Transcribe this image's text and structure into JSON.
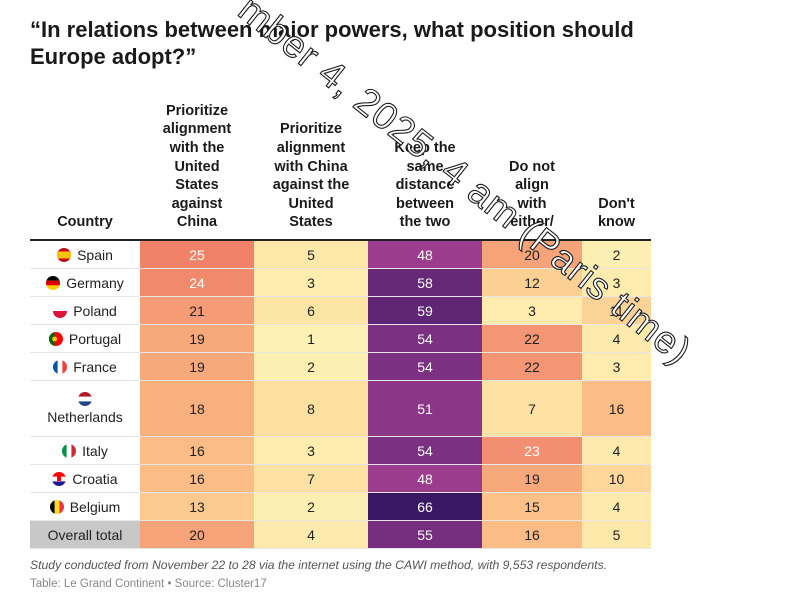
{
  "title": "“In relations between major powers, what position should Europe adopt?”",
  "columns": {
    "country": "Country",
    "c1": [
      "Prioritize",
      "alignment",
      "with the",
      "United",
      "States",
      "against",
      "China"
    ],
    "c2": [
      "Prioritize",
      "alignment",
      "with China",
      "against the",
      "United",
      "States"
    ],
    "c3": [
      "Keep the",
      "same",
      "distance",
      "between",
      "the two"
    ],
    "c4": [
      "Do not",
      "align",
      "with",
      "either/"
    ],
    "c5": [
      "Don't",
      "know"
    ]
  },
  "rows": [
    {
      "country": "Spain",
      "v": [
        "25",
        "5",
        "48",
        "20",
        "2"
      ]
    },
    {
      "country": "Germany",
      "v": [
        "24",
        "3",
        "58",
        "12",
        "3"
      ]
    },
    {
      "country": "Poland",
      "v": [
        "21",
        "6",
        "59",
        "3",
        "11"
      ]
    },
    {
      "country": "Portugal",
      "v": [
        "19",
        "1",
        "54",
        "22",
        "4"
      ]
    },
    {
      "country": "France",
      "v": [
        "19",
        "2",
        "54",
        "22",
        "3"
      ]
    },
    {
      "country": "Netherlands",
      "v": [
        "18",
        "8",
        "51",
        "7",
        "16"
      ]
    },
    {
      "country": "Italy",
      "v": [
        "16",
        "3",
        "54",
        "23",
        "4"
      ]
    },
    {
      "country": "Croatia",
      "v": [
        "16",
        "7",
        "48",
        "19",
        "10"
      ]
    },
    {
      "country": "Belgium",
      "v": [
        "13",
        "2",
        "66",
        "15",
        "4"
      ]
    },
    {
      "country": "Overall total",
      "v": [
        "20",
        "4",
        "55",
        "16",
        "5"
      ]
    }
  ],
  "note": "Study conducted from November 22 to 28 via the internet using the CAWI method, with 9,553 respondents.",
  "source": "Table: Le Grand Continent • Source: Cluster17",
  "watermark": "mber 4, 2025, 4 am (Paris time)",
  "colors": {
    "heat_low": "#fdf3b7",
    "heat_mid1": "#fde0a0",
    "heat_mid2": "#fbbd85",
    "heat_high": "#f0826a",
    "purple_low": "#9c3c8f",
    "purple_high": "#3a1864",
    "total_country_bg": "#c8c8c8"
  },
  "chart_data": {
    "type": "table",
    "title": "“In relations between major powers, what position should Europe adopt?”",
    "categories": [
      "Spain",
      "Germany",
      "Poland",
      "Portugal",
      "France",
      "Netherlands",
      "Italy",
      "Croatia",
      "Belgium",
      "Overall total"
    ],
    "series": [
      {
        "name": "Prioritize alignment with the United States against China",
        "values": [
          25,
          24,
          21,
          19,
          19,
          18,
          16,
          16,
          13,
          20
        ]
      },
      {
        "name": "Prioritize alignment with China against the United States",
        "values": [
          5,
          3,
          6,
          1,
          2,
          8,
          3,
          7,
          2,
          4
        ]
      },
      {
        "name": "Keep the same distance between the two",
        "values": [
          48,
          58,
          59,
          54,
          54,
          51,
          54,
          48,
          66,
          55
        ]
      },
      {
        "name": "Do not align with either/",
        "values": [
          20,
          12,
          3,
          22,
          22,
          7,
          23,
          19,
          15,
          16
        ]
      },
      {
        "name": "Don't know",
        "values": [
          2,
          3,
          11,
          4,
          3,
          16,
          4,
          10,
          4,
          5
        ]
      }
    ]
  }
}
